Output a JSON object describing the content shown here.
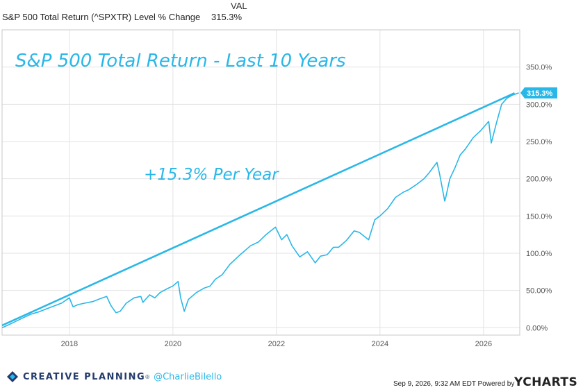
{
  "legend": {
    "column_header": "VAL",
    "series_name": "S&P 500 Total Return (^SPXTR) Level % Change",
    "series_value": "315.3%"
  },
  "chart_data": {
    "type": "line",
    "title": "S&P 500 Total Return - Last 10 Years",
    "annotation": "+15.3% Per Year",
    "x_ticks": [
      "2018",
      "2020",
      "2022",
      "2024",
      "2026"
    ],
    "y_ticks": [
      "0.00%",
      "50.00%",
      "100.0%",
      "150.0%",
      "200.0%",
      "250.0%",
      "300.0%",
      "350.0%"
    ],
    "xlim": [
      2016.7,
      2026.7
    ],
    "ylim": [
      -10,
      400
    ],
    "last_value_label": "315.3%",
    "grid": true,
    "line_color": "#29b7e8",
    "series": [
      {
        "name": "S&P 500 Total Return (^SPXTR) Level % Change",
        "x": [
          2016.7,
          2016.83,
          2016.95,
          2017.1,
          2017.25,
          2017.4,
          2017.55,
          2017.7,
          2017.85,
          2018.0,
          2018.07,
          2018.17,
          2018.3,
          2018.45,
          2018.6,
          2018.72,
          2018.8,
          2018.9,
          2018.98,
          2019.1,
          2019.25,
          2019.38,
          2019.42,
          2019.55,
          2019.65,
          2019.75,
          2019.88,
          2020.0,
          2020.1,
          2020.15,
          2020.22,
          2020.3,
          2020.45,
          2020.6,
          2020.72,
          2020.82,
          2020.95,
          2021.1,
          2021.3,
          2021.5,
          2021.65,
          2021.8,
          2021.98,
          2022.1,
          2022.2,
          2022.3,
          2022.45,
          2022.6,
          2022.75,
          2022.85,
          2022.98,
          2023.1,
          2023.2,
          2023.35,
          2023.5,
          2023.6,
          2023.78,
          2023.9,
          2024.0,
          2024.15,
          2024.3,
          2024.45,
          2024.55,
          2024.7,
          2024.85,
          2024.95,
          2025.1,
          2025.15,
          2025.25,
          2025.27,
          2025.35,
          2025.45,
          2025.55,
          2025.65,
          2025.8,
          2025.95,
          2026.1,
          2026.15,
          2026.25,
          2026.35,
          2026.45,
          2026.55,
          2026.68
        ],
        "values": [
          0,
          4,
          8,
          13,
          18,
          21,
          25,
          29,
          33,
          40,
          28,
          31,
          33,
          35,
          39,
          42,
          30,
          20,
          22,
          33,
          40,
          42,
          34,
          44,
          40,
          47,
          52,
          56,
          62,
          40,
          22,
          38,
          47,
          53,
          56,
          65,
          71,
          85,
          98,
          110,
          115,
          125,
          135,
          118,
          125,
          110,
          95,
          102,
          87,
          96,
          98,
          108,
          108,
          117,
          130,
          128,
          118,
          145,
          150,
          160,
          175,
          182,
          185,
          192,
          200,
          208,
          222,
          207,
          170,
          175,
          200,
          215,
          232,
          240,
          255,
          265,
          277,
          248,
          275,
          300,
          308,
          312,
          315.3
        ]
      },
      {
        "name": "+15.3% Per Year",
        "x": [
          2016.7,
          2026.6
        ],
        "values": [
          3,
          315
        ]
      }
    ]
  },
  "footer": {
    "brand_name": "CREATIVE PLANNING",
    "brand_symbol": "®",
    "handle": "@CharlieBilello",
    "timestamp": "Sep 9, 2026, 9:32 AM EDT Powered by",
    "powered_by": "YCHARTS"
  }
}
